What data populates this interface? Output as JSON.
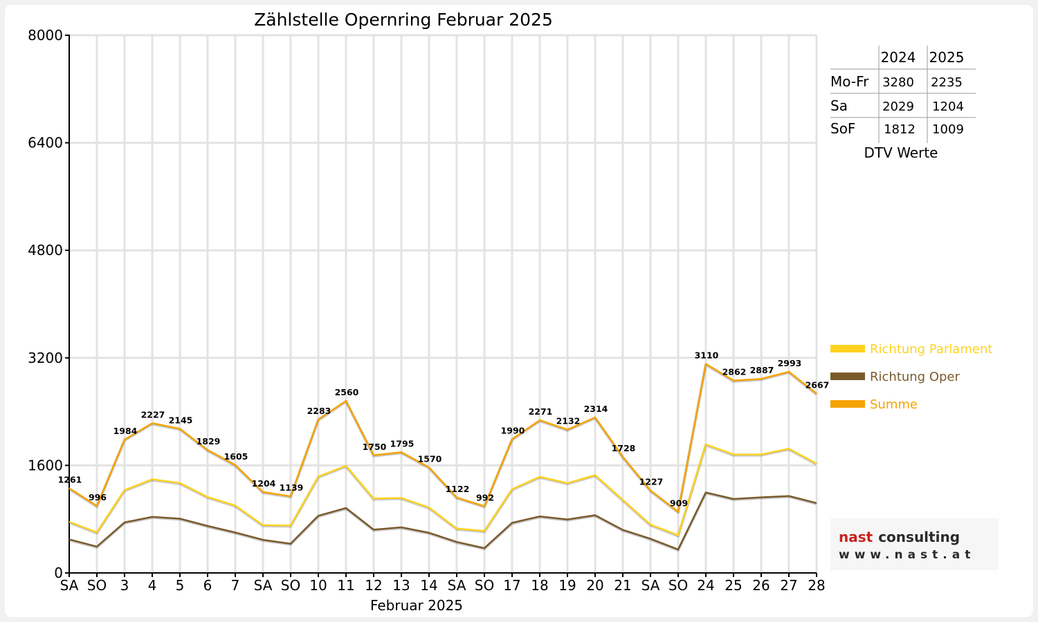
{
  "chart_data": {
    "type": "line",
    "title": "Zählstelle Opernring Februar 2025",
    "xlabel": "Februar 2025",
    "ylabel": "",
    "ylim": [
      0,
      8000
    ],
    "yticks": [
      0,
      1600,
      3200,
      4800,
      6400,
      8000
    ],
    "categories": [
      "SA",
      "SO",
      "3",
      "4",
      "5",
      "6",
      "7",
      "SA",
      "SO",
      "10",
      "11",
      "12",
      "13",
      "14",
      "SA",
      "SO",
      "17",
      "18",
      "19",
      "20",
      "21",
      "SA",
      "SO",
      "24",
      "25",
      "26",
      "27",
      "28"
    ],
    "weekend_categories": [
      "SO"
    ],
    "weekend_color": "#ff0000",
    "grid": true,
    "legend_position": "right",
    "series": [
      {
        "name": "Richtung Parlament",
        "color": "#ffd21f",
        "values": [
          761,
          604,
          1232,
          1393,
          1338,
          1130,
          1003,
          711,
          704,
          1433,
          1594,
          1106,
          1116,
          973,
          661,
          623,
          1245,
          1430,
          1336,
          1455,
          1087,
          719,
          560,
          1913,
          1762,
          1762,
          1849,
          1627
        ]
      },
      {
        "name": "Richtung Oper",
        "color": "#7a5a2b",
        "values": [
          500,
          392,
          752,
          834,
          807,
          699,
          602,
          493,
          435,
          850,
          966,
          644,
          679,
          597,
          461,
          369,
          745,
          841,
          796,
          859,
          641,
          508,
          349,
          1197,
          1100,
          1125,
          1144,
          1040
        ]
      },
      {
        "name": "Summe",
        "color": "#f5a300",
        "values": [
          1261,
          996,
          1984,
          2227,
          2145,
          1829,
          1605,
          1204,
          1139,
          2283,
          2560,
          1750,
          1795,
          1570,
          1122,
          992,
          1990,
          2271,
          2132,
          2314,
          1728,
          1227,
          909,
          3110,
          2862,
          2887,
          2993,
          2667
        ]
      }
    ]
  },
  "dtv_table": {
    "caption": "DTV Werte",
    "columns": [
      "2024",
      "2025"
    ],
    "rows": [
      {
        "label": "Mo-Fr",
        "values": [
          "3280",
          "2235"
        ]
      },
      {
        "label": "Sa",
        "values": [
          "2029",
          "1204"
        ]
      },
      {
        "label": "SoF",
        "values": [
          "1812",
          "1009"
        ]
      }
    ]
  },
  "logo": {
    "name_part1": "nast",
    "name_part2": "consulting",
    "url": "www.nast.at"
  }
}
